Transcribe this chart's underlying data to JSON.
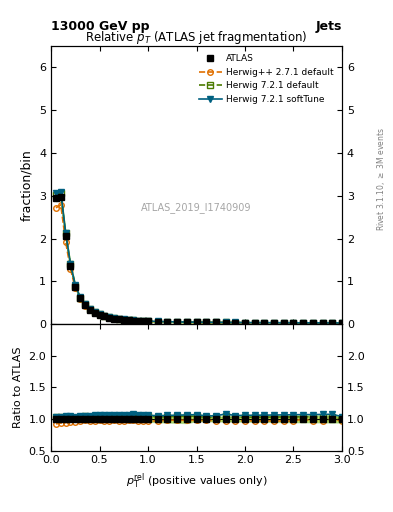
{
  "title": "Relative $p_T$ (ATLAS jet fragmentation)",
  "header_left": "13000 GeV pp",
  "header_right": "Jets",
  "right_label": "Rivet 3.1.10, $\\geq$ 3M events",
  "watermark": "ATLAS_2019_I1740909",
  "xlabel": "$p_{\\mathrm{T}}^{\\mathrm{rel}}$ (positive values only)",
  "ylabel_main": "fraction/bin",
  "ylabel_ratio": "Ratio to ATLAS",
  "xlim": [
    0,
    3
  ],
  "ylim_main": [
    0,
    6.5
  ],
  "ylim_ratio": [
    0.5,
    2.5
  ],
  "yticks_main": [
    0,
    1,
    2,
    3,
    4,
    5,
    6
  ],
  "yticks_ratio": [
    0.5,
    1.0,
    1.5,
    2.0
  ],
  "x_data": [
    0.05,
    0.1,
    0.15,
    0.2,
    0.25,
    0.3,
    0.35,
    0.4,
    0.45,
    0.5,
    0.55,
    0.6,
    0.65,
    0.7,
    0.75,
    0.8,
    0.85,
    0.9,
    0.95,
    1.0,
    1.1,
    1.2,
    1.3,
    1.4,
    1.5,
    1.6,
    1.7,
    1.8,
    1.9,
    2.0,
    2.1,
    2.2,
    2.3,
    2.4,
    2.5,
    2.6,
    2.7,
    2.8,
    2.9,
    3.0
  ],
  "atlas_y": [
    2.95,
    2.98,
    2.05,
    1.35,
    0.88,
    0.6,
    0.44,
    0.34,
    0.27,
    0.22,
    0.185,
    0.155,
    0.13,
    0.115,
    0.102,
    0.092,
    0.083,
    0.077,
    0.071,
    0.067,
    0.06,
    0.054,
    0.05,
    0.047,
    0.044,
    0.042,
    0.04,
    0.038,
    0.037,
    0.035,
    0.034,
    0.033,
    0.032,
    0.031,
    0.03,
    0.029,
    0.029,
    0.028,
    0.027,
    0.027
  ],
  "atlas_yerr": [
    0.05,
    0.05,
    0.04,
    0.03,
    0.02,
    0.015,
    0.01,
    0.008,
    0.006,
    0.005,
    0.004,
    0.004,
    0.003,
    0.003,
    0.003,
    0.002,
    0.002,
    0.002,
    0.002,
    0.002,
    0.002,
    0.002,
    0.002,
    0.002,
    0.001,
    0.001,
    0.001,
    0.001,
    0.001,
    0.001,
    0.001,
    0.001,
    0.001,
    0.001,
    0.001,
    0.001,
    0.001,
    0.001,
    0.001,
    0.001
  ],
  "herwig_pp_y": [
    2.72,
    2.79,
    1.93,
    1.29,
    0.84,
    0.58,
    0.43,
    0.33,
    0.26,
    0.215,
    0.18,
    0.151,
    0.127,
    0.112,
    0.099,
    0.09,
    0.081,
    0.075,
    0.069,
    0.065,
    0.058,
    0.053,
    0.049,
    0.046,
    0.043,
    0.041,
    0.039,
    0.037,
    0.036,
    0.034,
    0.033,
    0.032,
    0.031,
    0.03,
    0.029,
    0.029,
    0.028,
    0.027,
    0.027,
    0.026
  ],
  "herwig721_default_y": [
    3.03,
    3.06,
    2.12,
    1.4,
    0.9,
    0.62,
    0.46,
    0.35,
    0.28,
    0.23,
    0.194,
    0.162,
    0.137,
    0.121,
    0.107,
    0.096,
    0.087,
    0.08,
    0.074,
    0.07,
    0.062,
    0.056,
    0.052,
    0.049,
    0.046,
    0.043,
    0.041,
    0.04,
    0.038,
    0.036,
    0.035,
    0.034,
    0.033,
    0.032,
    0.031,
    0.03,
    0.03,
    0.029,
    0.028,
    0.027
  ],
  "herwig721_soft_y": [
    3.06,
    3.09,
    2.14,
    1.41,
    0.91,
    0.63,
    0.46,
    0.355,
    0.285,
    0.235,
    0.197,
    0.165,
    0.139,
    0.123,
    0.109,
    0.098,
    0.089,
    0.082,
    0.076,
    0.071,
    0.063,
    0.057,
    0.053,
    0.05,
    0.047,
    0.044,
    0.042,
    0.041,
    0.039,
    0.037,
    0.036,
    0.035,
    0.034,
    0.033,
    0.032,
    0.031,
    0.031,
    0.03,
    0.029,
    0.028
  ],
  "color_atlas": "#000000",
  "color_herwig_pp": "#e07000",
  "color_herwig721_default": "#4a7a00",
  "color_herwig721_soft": "#006080",
  "band_color_yellow": "#ffff80",
  "band_color_green": "#80c040"
}
